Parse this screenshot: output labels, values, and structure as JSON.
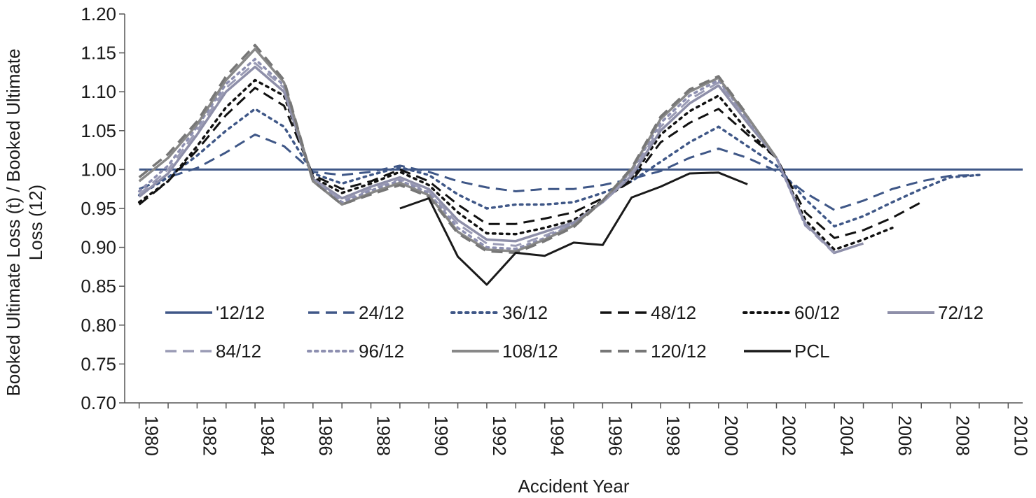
{
  "chart_data": {
    "type": "line",
    "title": "",
    "xlabel": "Accident Year",
    "ylabel_lines": [
      "Booked Ultimate Loss (t) / Booked Ultimate",
      "Loss (12)"
    ],
    "xlim": [
      1979.5,
      2010.5
    ],
    "ylim": [
      0.7,
      1.2
    ],
    "y_ticks": [
      "0.70",
      "0.75",
      "0.80",
      "0.85",
      "0.90",
      "0.95",
      "1.00",
      "1.05",
      "1.10",
      "1.15",
      "1.20"
    ],
    "x_ticks": [
      "1980",
      "1982",
      "1984",
      "1986",
      "1988",
      "1990",
      "1992",
      "1994",
      "1996",
      "1998",
      "2000",
      "2002",
      "2004",
      "2006",
      "2008",
      "2010"
    ],
    "legend_position": "bottom-center",
    "series": [
      {
        "name": "'12/12",
        "color": "#3f5787",
        "dash": "solid",
        "width": 3,
        "x": [
          1980,
          2010.5
        ],
        "y": [
          1.0,
          1.0
        ]
      },
      {
        "name": "24/12",
        "color": "#3f5787",
        "dash": "dashed",
        "width": 3,
        "x": [
          1980,
          1981,
          1982,
          1983,
          1984,
          1985,
          1986,
          1987,
          1988,
          1989,
          1990,
          1991,
          1992,
          1993,
          1994,
          1995,
          1996,
          1997,
          1998,
          1999,
          2000,
          2001,
          2002,
          2003,
          2004,
          2005,
          2006,
          2007,
          2008,
          2009
        ],
        "y": [
          0.975,
          0.99,
          1.002,
          1.022,
          1.045,
          1.03,
          0.997,
          0.993,
          0.997,
          1.005,
          0.997,
          0.985,
          0.977,
          0.972,
          0.975,
          0.975,
          0.98,
          0.988,
          0.998,
          1.015,
          1.027,
          1.015,
          0.998,
          0.97,
          0.948,
          0.96,
          0.975,
          0.985,
          0.992,
          0.993
        ]
      },
      {
        "name": "36/12",
        "color": "#3f5787",
        "dash": "dotted",
        "width": 3.5,
        "x": [
          1980,
          1981,
          1982,
          1983,
          1984,
          1985,
          1986,
          1987,
          1988,
          1989,
          1990,
          1991,
          1992,
          1993,
          1994,
          1995,
          1996,
          1997,
          1998,
          1999,
          2000,
          2001,
          2002,
          2003,
          2004,
          2005,
          2006,
          2007,
          2008,
          2009
        ],
        "y": [
          0.967,
          0.99,
          1.018,
          1.05,
          1.078,
          1.055,
          0.995,
          0.982,
          0.993,
          1.003,
          0.993,
          0.968,
          0.95,
          0.955,
          0.955,
          0.958,
          0.97,
          0.985,
          1.01,
          1.035,
          1.055,
          1.03,
          1.005,
          0.962,
          0.927,
          0.94,
          0.958,
          0.975,
          0.99,
          0.993
        ]
      },
      {
        "name": "48/12",
        "color": "#111111",
        "dash": "dashed",
        "width": 3,
        "x": [
          1980,
          1981,
          1982,
          1983,
          1984,
          1985,
          1986,
          1987,
          1988,
          1989,
          1990,
          1991,
          1992,
          1993,
          1994,
          1995,
          1996,
          1997,
          1998,
          1999,
          2000,
          2001,
          2002,
          2003,
          2004,
          2005,
          2006,
          2007
        ],
        "y": [
          0.955,
          0.985,
          1.025,
          1.07,
          1.105,
          1.082,
          0.993,
          0.975,
          0.985,
          1.0,
          0.985,
          0.955,
          0.93,
          0.93,
          0.937,
          0.945,
          0.963,
          0.985,
          1.035,
          1.06,
          1.078,
          1.045,
          1.015,
          0.945,
          0.912,
          0.922,
          0.938,
          0.958
        ]
      },
      {
        "name": "60/12",
        "color": "#111111",
        "dash": "dotted",
        "width": 3.5,
        "x": [
          1980,
          1981,
          1982,
          1983,
          1984,
          1985,
          1986,
          1987,
          1988,
          1989,
          1990,
          1991,
          1992,
          1993,
          1994,
          1995,
          1996,
          1997,
          1998,
          1999,
          2000,
          2001,
          2002,
          2003,
          2004,
          2005,
          2006
        ],
        "y": [
          0.958,
          0.985,
          1.03,
          1.08,
          1.115,
          1.095,
          0.99,
          0.97,
          0.982,
          0.997,
          0.98,
          0.945,
          0.918,
          0.917,
          0.925,
          0.935,
          0.96,
          0.988,
          1.045,
          1.075,
          1.095,
          1.05,
          1.015,
          0.935,
          0.897,
          0.91,
          0.925
        ]
      },
      {
        "name": "72/12",
        "color": "#8e8fa9",
        "dash": "solid",
        "width": 3.5,
        "x": [
          1980,
          1981,
          1982,
          1983,
          1984,
          1985,
          1986,
          1987,
          1988,
          1989,
          1990,
          1991,
          1992,
          1993,
          1994,
          1995,
          1996,
          1997,
          1998,
          1999,
          2000,
          2001,
          2002,
          2003,
          2004,
          2005
        ],
        "y": [
          0.965,
          0.995,
          1.045,
          1.1,
          1.132,
          1.1,
          0.988,
          0.963,
          0.978,
          0.99,
          0.975,
          0.935,
          0.91,
          0.908,
          0.92,
          0.932,
          0.958,
          0.992,
          1.05,
          1.085,
          1.108,
          1.06,
          1.015,
          0.93,
          0.893,
          0.905
        ]
      },
      {
        "name": "84/12",
        "color": "#9a9bb5",
        "dash": "dashed",
        "width": 3,
        "x": [
          1980,
          1981,
          1982,
          1983,
          1984,
          1985,
          1986,
          1987,
          1988,
          1989,
          1990,
          1991,
          1992,
          1993,
          1994,
          1995,
          1996,
          1997,
          1998,
          1999,
          2000,
          2001,
          2002,
          2003,
          2004
        ],
        "y": [
          0.968,
          1.0,
          1.05,
          1.105,
          1.137,
          1.105,
          0.987,
          0.96,
          0.975,
          0.988,
          0.972,
          0.93,
          0.905,
          0.902,
          0.915,
          0.93,
          0.958,
          0.995,
          1.055,
          1.09,
          1.112,
          1.065,
          1.015,
          0.928,
          0.892
        ]
      },
      {
        "name": "96/12",
        "color": "#8d8fb0",
        "dash": "dotted",
        "width": 3.5,
        "x": [
          1980,
          1981,
          1982,
          1983,
          1984,
          1985,
          1986,
          1987,
          1988,
          1989,
          1990,
          1991,
          1992,
          1993,
          1994,
          1995,
          1996,
          1997,
          1998,
          1999,
          2000,
          2001,
          2002,
          2003
        ],
        "y": [
          0.972,
          1.005,
          1.055,
          1.11,
          1.142,
          1.108,
          0.986,
          0.958,
          0.973,
          0.986,
          0.97,
          0.925,
          0.9,
          0.898,
          0.912,
          0.93,
          0.96,
          0.998,
          1.06,
          1.095,
          1.115,
          1.065,
          1.015,
          0.928
        ]
      },
      {
        "name": "108/12",
        "color": "#888888",
        "dash": "solid",
        "width": 3.5,
        "x": [
          1980,
          1981,
          1982,
          1983,
          1984,
          1985,
          1986,
          1987,
          1988,
          1989,
          1990,
          1991,
          1992,
          1993,
          1994,
          1995,
          1996,
          1997,
          1998,
          1999,
          2000,
          2001,
          2002
        ],
        "y": [
          0.985,
          1.015,
          1.058,
          1.115,
          1.155,
          1.112,
          0.985,
          0.955,
          0.97,
          0.983,
          0.967,
          0.92,
          0.897,
          0.895,
          0.91,
          0.928,
          0.96,
          1.0,
          1.065,
          1.1,
          1.118,
          1.068,
          1.015
        ]
      },
      {
        "name": "120/12",
        "color": "#777777",
        "dash": "dashed",
        "width": 3.5,
        "x": [
          1980,
          1981,
          1982,
          1983,
          1984,
          1985,
          1986,
          1987,
          1988,
          1989,
          1990,
          1991,
          1992,
          1993,
          1994,
          1995,
          1996,
          1997,
          1998,
          1999,
          2000,
          2001
        ],
        "y": [
          0.99,
          1.02,
          1.062,
          1.12,
          1.16,
          1.115,
          0.985,
          0.955,
          0.968,
          0.98,
          0.965,
          0.918,
          0.895,
          0.893,
          0.908,
          0.926,
          0.96,
          1.002,
          1.068,
          1.103,
          1.12,
          1.07
        ]
      },
      {
        "name": "PCL",
        "color": "#1a1a1a",
        "dash": "solid",
        "width": 3,
        "x": [
          1989,
          1990,
          1991,
          1992,
          1993,
          1994,
          1995,
          1996,
          1997,
          1998,
          1999,
          2000,
          2001
        ],
        "y": [
          0.95,
          0.963,
          0.888,
          0.852,
          0.893,
          0.889,
          0.906,
          0.903,
          0.964,
          0.978,
          0.995,
          0.996,
          0.981
        ]
      }
    ]
  }
}
